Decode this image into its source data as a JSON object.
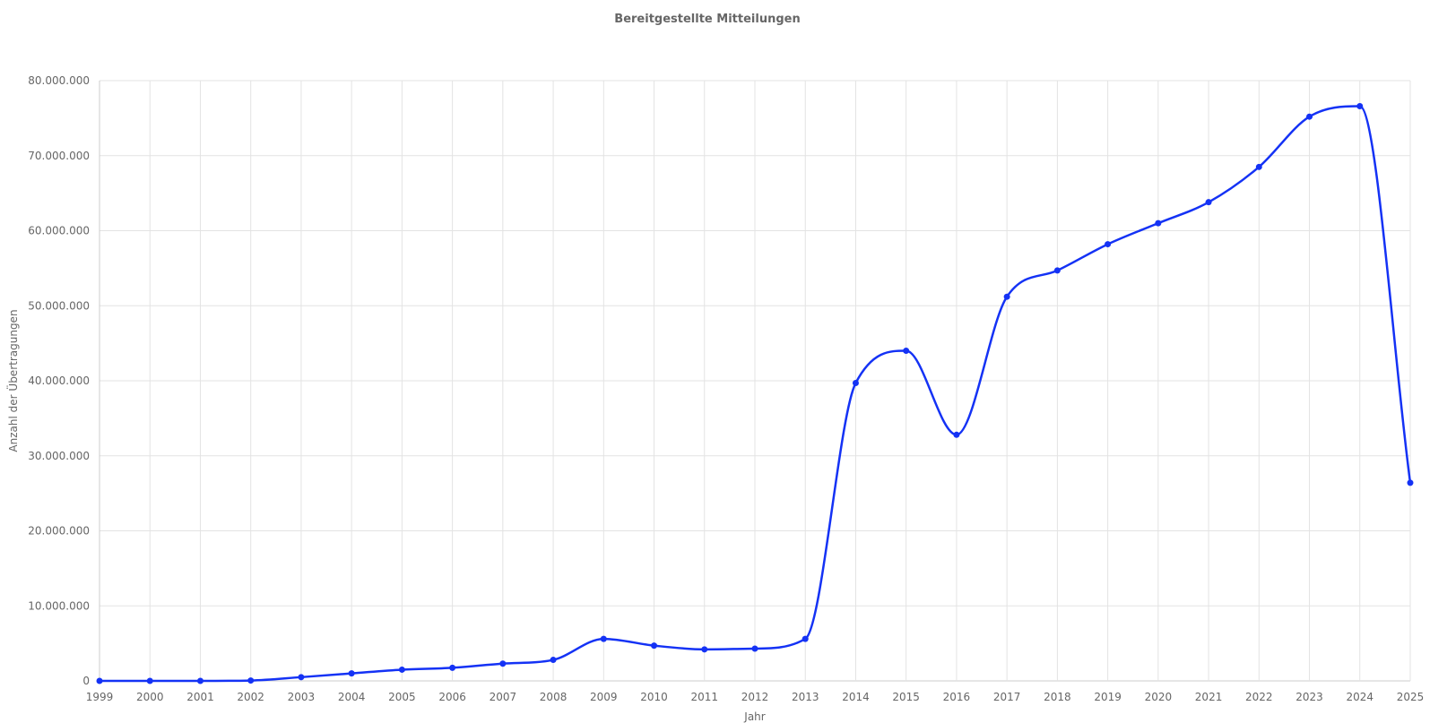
{
  "chart_data": {
    "type": "line",
    "title": "Bereitgestellte Mitteilungen",
    "xlabel": "Jahr",
    "ylabel": "Anzahl der Übertragungen",
    "x": [
      "1999",
      "2000",
      "2001",
      "2002",
      "2003",
      "2004",
      "2005",
      "2006",
      "2007",
      "2008",
      "2009",
      "2010",
      "2011",
      "2012",
      "2013",
      "2014",
      "2015",
      "2016",
      "2017",
      "2018",
      "2019",
      "2020",
      "2021",
      "2022",
      "2023",
      "2024",
      "2025"
    ],
    "series": [
      {
        "values": [
          0,
          0,
          0,
          50000,
          500000,
          1000000,
          1500000,
          1750000,
          2300000,
          2800000,
          5600000,
          4700000,
          4200000,
          4300000,
          5600000,
          39700000,
          44000000,
          32800000,
          51200000,
          54700000,
          58200000,
          61000000,
          63800000,
          68500000,
          75200000,
          76600000,
          26400000
        ],
        "color": "#1432f5"
      }
    ],
    "ylim": [
      0,
      80000000
    ],
    "yticks": [
      0,
      10000000,
      20000000,
      30000000,
      40000000,
      50000000,
      60000000,
      70000000,
      80000000
    ],
    "ytick_labels": [
      "0",
      "10.000.000",
      "20.000.000",
      "30.000.000",
      "40.000.000",
      "50.000.000",
      "60.000.000",
      "70.000.000",
      "80.000.000"
    ],
    "grid": true,
    "legend": "none",
    "smooth": true
  }
}
